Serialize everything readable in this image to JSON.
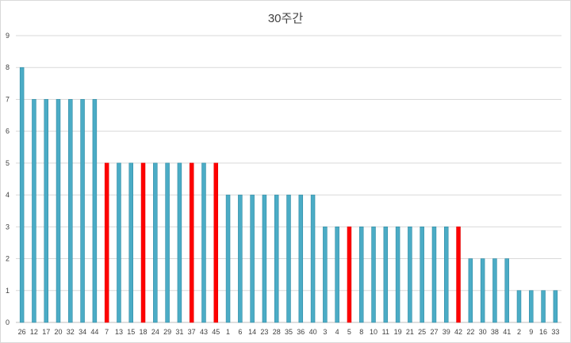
{
  "chart_data": {
    "type": "bar",
    "title": "30주간",
    "xlabel": "",
    "ylabel": "",
    "ylim": [
      0,
      9
    ],
    "yticks": [
      0,
      1,
      2,
      3,
      4,
      5,
      6,
      7,
      8,
      9
    ],
    "grid": true,
    "legend": "none",
    "categories": [
      "26",
      "12",
      "17",
      "20",
      "32",
      "34",
      "44",
      "7",
      "13",
      "15",
      "18",
      "24",
      "29",
      "31",
      "37",
      "43",
      "45",
      "1",
      "6",
      "14",
      "23",
      "28",
      "35",
      "36",
      "40",
      "3",
      "4",
      "5",
      "8",
      "10",
      "11",
      "19",
      "21",
      "25",
      "27",
      "39",
      "42",
      "22",
      "30",
      "38",
      "41",
      "2",
      "9",
      "16",
      "33"
    ],
    "values": [
      8,
      7,
      7,
      7,
      7,
      7,
      7,
      5,
      5,
      5,
      5,
      5,
      5,
      5,
      5,
      5,
      5,
      4,
      4,
      4,
      4,
      4,
      4,
      4,
      4,
      3,
      3,
      3,
      3,
      3,
      3,
      3,
      3,
      3,
      3,
      3,
      3,
      2,
      2,
      2,
      2,
      1,
      1,
      1,
      1
    ],
    "highlighted": [
      "7",
      "18",
      "37",
      "45",
      "5",
      "42"
    ],
    "colors": {
      "bar": "#4bacc6",
      "bar_edge": "#2e8aa3",
      "highlight": "#ff0000",
      "grid": "#d9d9d9",
      "axis": "#bfbfbf"
    }
  }
}
